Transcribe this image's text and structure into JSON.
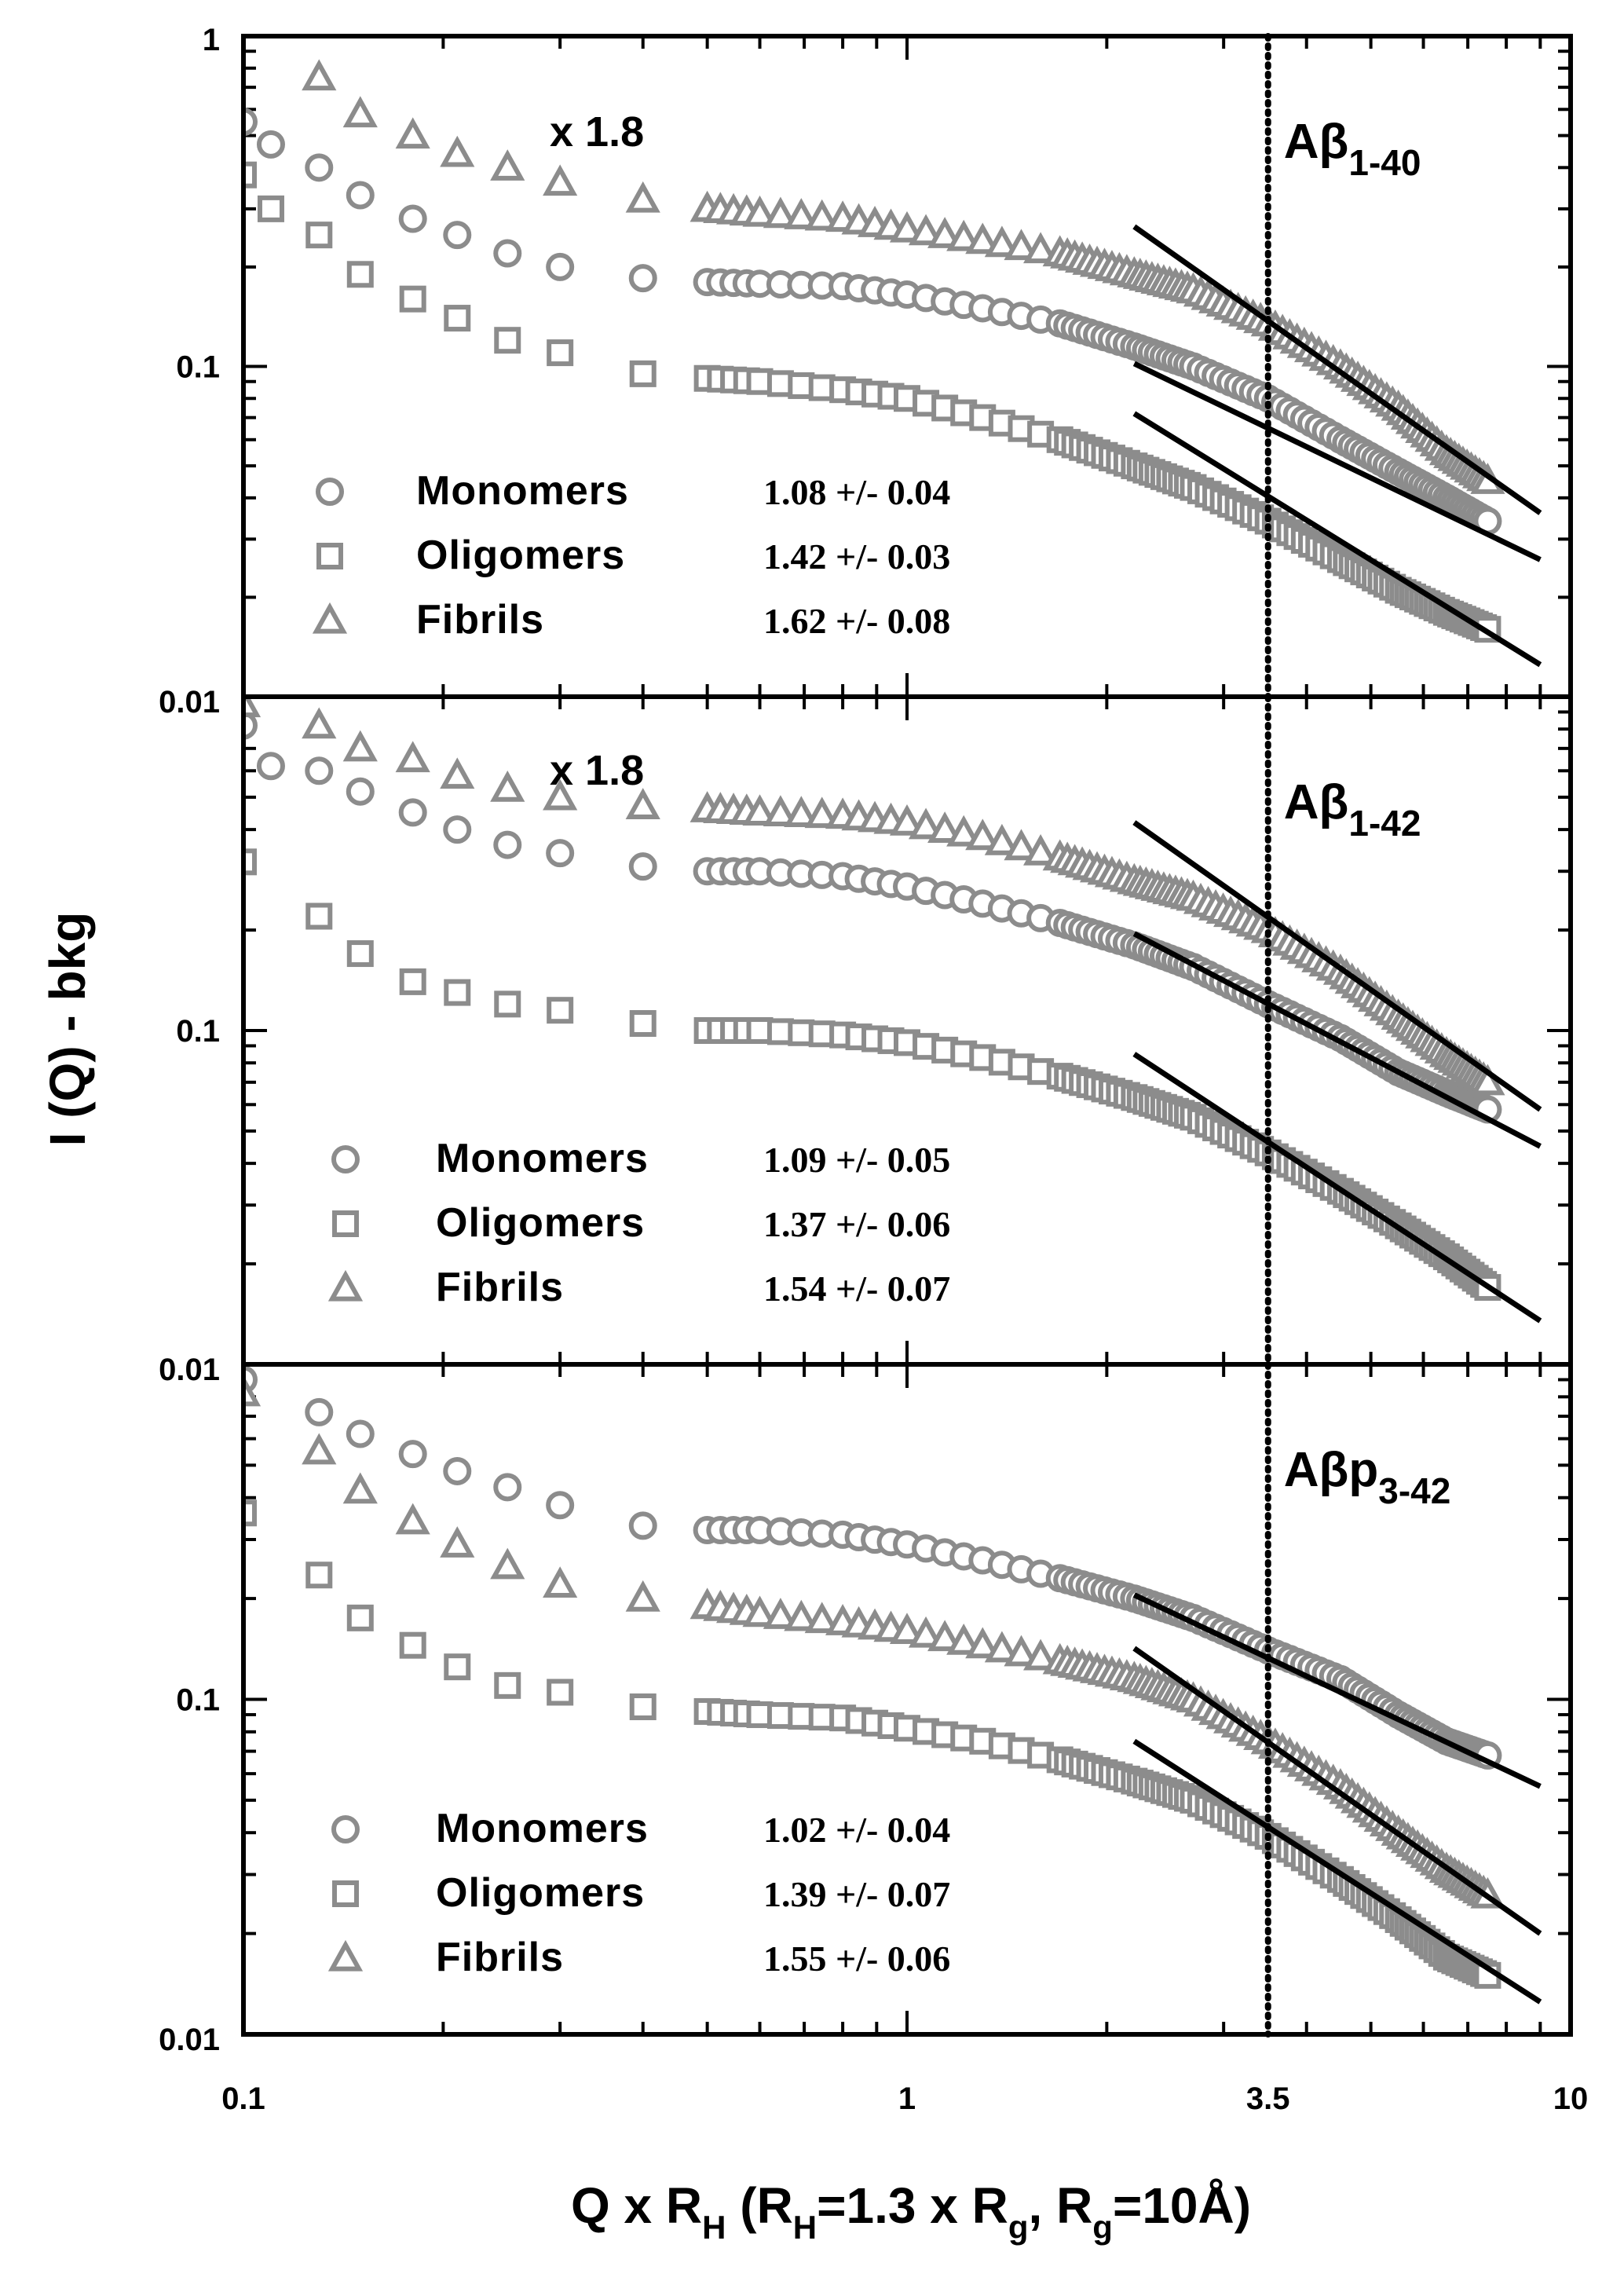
{
  "colors": {
    "marker": "#8c8c8c",
    "fit": "#000000",
    "axis": "#000000"
  },
  "chart_data": {
    "type": "scatter",
    "scale": "log-log",
    "xlabel": "Q x R_H (R_H=1.3 x R_g, R_g=10Å)",
    "xlabel_parts": [
      "Q x R",
      "H",
      " (R",
      "H",
      "=1.3 x R",
      "g",
      ", R",
      "g",
      "=10Å)"
    ],
    "ylabel": "I (Q) - bkg",
    "xlim": [
      0.1,
      10
    ],
    "x_ticks": [
      "0.1",
      "1",
      "3.5",
      "10"
    ],
    "vline": {
      "x": 3.5,
      "style": "dotted"
    },
    "panels": [
      {
        "label": "Aβ1-40",
        "label_main": "Aβ",
        "label_sub": "1-40",
        "scale_note": "x 1.8",
        "ylim": [
          0.01,
          1
        ],
        "y_ticks": [
          "1",
          "0.1",
          "0.01"
        ],
        "series": [
          {
            "name": "Monomers",
            "marker": "circle",
            "slope_text": "1.08 +/- 0.04",
            "points": [
              [
                0.1,
                0.55
              ],
              [
                0.11,
                0.47
              ],
              [
                0.13,
                0.4
              ],
              [
                0.15,
                0.33
              ],
              [
                0.18,
                0.28
              ],
              [
                0.21,
                0.25
              ],
              [
                0.25,
                0.22
              ],
              [
                0.3,
                0.2
              ],
              [
                0.4,
                0.185
              ],
              [
                0.5,
                0.18
              ],
              [
                0.6,
                0.178
              ],
              [
                0.8,
                0.175
              ],
              [
                1.0,
                0.165
              ],
              [
                1.3,
                0.15
              ],
              [
                1.7,
                0.135
              ],
              [
                2.2,
                0.115
              ],
              [
                2.7,
                0.1
              ],
              [
                3.5,
                0.08
              ],
              [
                4.5,
                0.06
              ],
              [
                5.5,
                0.048
              ],
              [
                6.5,
                0.04
              ],
              [
                7.5,
                0.034
              ]
            ],
            "fit": [
              [
                2.2,
                0.102
              ],
              [
                9,
                0.026
              ]
            ]
          },
          {
            "name": "Oligomers",
            "marker": "square",
            "slope_text": "1.42 +/- 0.03",
            "points": [
              [
                0.1,
                0.38
              ],
              [
                0.11,
                0.3
              ],
              [
                0.13,
                0.25
              ],
              [
                0.15,
                0.19
              ],
              [
                0.18,
                0.16
              ],
              [
                0.21,
                0.14
              ],
              [
                0.25,
                0.12
              ],
              [
                0.3,
                0.11
              ],
              [
                0.4,
                0.095
              ],
              [
                0.5,
                0.092
              ],
              [
                0.6,
                0.09
              ],
              [
                0.8,
                0.085
              ],
              [
                1.0,
                0.08
              ],
              [
                1.3,
                0.07
              ],
              [
                1.7,
                0.06
              ],
              [
                2.2,
                0.05
              ],
              [
                2.7,
                0.043
              ],
              [
                3.5,
                0.034
              ],
              [
                4.5,
                0.026
              ],
              [
                5.5,
                0.021
              ],
              [
                6.5,
                0.018
              ],
              [
                7.5,
                0.016
              ]
            ],
            "fit": [
              [
                2.2,
                0.072
              ],
              [
                9,
                0.0125
              ]
            ]
          },
          {
            "name": "Fibrils",
            "marker": "triangle",
            "slope_text": "1.62 +/- 0.08",
            "points": [
              [
                0.13,
                0.75
              ],
              [
                0.15,
                0.58
              ],
              [
                0.18,
                0.5
              ],
              [
                0.21,
                0.44
              ],
              [
                0.25,
                0.4
              ],
              [
                0.3,
                0.36
              ],
              [
                0.4,
                0.32
              ],
              [
                0.5,
                0.3
              ],
              [
                0.6,
                0.29
              ],
              [
                0.8,
                0.28
              ],
              [
                1.0,
                0.26
              ],
              [
                1.3,
                0.24
              ],
              [
                1.7,
                0.22
              ],
              [
                2.2,
                0.19
              ],
              [
                2.7,
                0.17
              ],
              [
                3.5,
                0.135
              ],
              [
                4.5,
                0.1
              ],
              [
                5.5,
                0.075
              ],
              [
                6.5,
                0.055
              ],
              [
                7.5,
                0.045
              ]
            ],
            "fit": [
              [
                2.2,
                0.265
              ],
              [
                9,
                0.036
              ]
            ]
          }
        ],
        "legend": [
          "Monomers",
          "Oligomers",
          "Fibrils"
        ]
      },
      {
        "label": "Aβ1-42",
        "label_main": "Aβ",
        "label_sub": "1-42",
        "scale_note": "x 1.8",
        "ylim": [
          0.01,
          1
        ],
        "y_ticks": [
          "0.1",
          "0.01"
        ],
        "series": [
          {
            "name": "Monomers",
            "marker": "circle",
            "slope_text": "1.09 +/- 0.05",
            "points": [
              [
                0.1,
                0.82
              ],
              [
                0.11,
                0.62
              ],
              [
                0.13,
                0.6
              ],
              [
                0.15,
                0.52
              ],
              [
                0.18,
                0.45
              ],
              [
                0.21,
                0.4
              ],
              [
                0.25,
                0.36
              ],
              [
                0.3,
                0.34
              ],
              [
                0.4,
                0.31
              ],
              [
                0.5,
                0.3
              ],
              [
                0.6,
                0.3
              ],
              [
                0.8,
                0.29
              ],
              [
                1.0,
                0.27
              ],
              [
                1.3,
                0.24
              ],
              [
                1.7,
                0.21
              ],
              [
                2.2,
                0.18
              ],
              [
                2.7,
                0.155
              ],
              [
                3.5,
                0.12
              ],
              [
                4.5,
                0.095
              ],
              [
                5.5,
                0.075
              ],
              [
                6.5,
                0.065
              ],
              [
                7.5,
                0.058
              ]
            ],
            "fit": [
              [
                2.2,
                0.195
              ],
              [
                9,
                0.045
              ]
            ]
          },
          {
            "name": "Oligomers",
            "marker": "square",
            "slope_text": "1.37 +/- 0.06",
            "points": [
              [
                0.1,
                0.32
              ],
              [
                0.13,
                0.22
              ],
              [
                0.15,
                0.17
              ],
              [
                0.18,
                0.14
              ],
              [
                0.21,
                0.13
              ],
              [
                0.25,
                0.12
              ],
              [
                0.3,
                0.115
              ],
              [
                0.4,
                0.105
              ],
              [
                0.5,
                0.1
              ],
              [
                0.6,
                0.1
              ],
              [
                0.8,
                0.097
              ],
              [
                1.0,
                0.092
              ],
              [
                1.3,
                0.083
              ],
              [
                1.7,
                0.073
              ],
              [
                2.2,
                0.063
              ],
              [
                2.7,
                0.055
              ],
              [
                3.5,
                0.043
              ],
              [
                4.5,
                0.033
              ],
              [
                5.5,
                0.026
              ],
              [
                6.5,
                0.021
              ],
              [
                7.5,
                0.017
              ]
            ],
            "fit": [
              [
                2.2,
                0.085
              ],
              [
                9,
                0.0135
              ]
            ]
          },
          {
            "name": "Fibrils",
            "marker": "triangle",
            "slope_text": "1.54 +/- 0.07",
            "points": [
              [
                0.1,
                0.95
              ],
              [
                0.13,
                0.82
              ],
              [
                0.15,
                0.7
              ],
              [
                0.18,
                0.65
              ],
              [
                0.21,
                0.58
              ],
              [
                0.25,
                0.53
              ],
              [
                0.3,
                0.5
              ],
              [
                0.4,
                0.47
              ],
              [
                0.5,
                0.46
              ],
              [
                0.6,
                0.45
              ],
              [
                0.8,
                0.44
              ],
              [
                1.0,
                0.42
              ],
              [
                1.3,
                0.38
              ],
              [
                1.7,
                0.33
              ],
              [
                2.2,
                0.28
              ],
              [
                2.7,
                0.25
              ],
              [
                3.5,
                0.2
              ],
              [
                4.5,
                0.15
              ],
              [
                5.5,
                0.11
              ],
              [
                6.5,
                0.085
              ],
              [
                7.5,
                0.07
              ]
            ],
            "fit": [
              [
                2.2,
                0.42
              ],
              [
                9,
                0.058
              ]
            ]
          }
        ],
        "legend": [
          "Monomers",
          "Oligomers",
          "Fibrils"
        ]
      },
      {
        "label": "Aβp3-42",
        "label_main": "Aβp",
        "label_sub": "3-42",
        "scale_note": "",
        "ylim": [
          0.01,
          1
        ],
        "y_ticks": [
          "0.1",
          "0.01"
        ],
        "series": [
          {
            "name": "Monomers",
            "marker": "circle",
            "slope_text": "1.02 +/- 0.04",
            "points": [
              [
                0.1,
                0.9
              ],
              [
                0.13,
                0.72
              ],
              [
                0.15,
                0.62
              ],
              [
                0.18,
                0.54
              ],
              [
                0.21,
                0.48
              ],
              [
                0.25,
                0.43
              ],
              [
                0.3,
                0.38
              ],
              [
                0.4,
                0.33
              ],
              [
                0.5,
                0.32
              ],
              [
                0.6,
                0.32
              ],
              [
                0.8,
                0.31
              ],
              [
                1.0,
                0.29
              ],
              [
                1.3,
                0.26
              ],
              [
                1.7,
                0.23
              ],
              [
                2.2,
                0.2
              ],
              [
                2.7,
                0.175
              ],
              [
                3.5,
                0.14
              ],
              [
                4.5,
                0.115
              ],
              [
                5.5,
                0.09
              ],
              [
                6.5,
                0.075
              ],
              [
                7.5,
                0.068
              ]
            ],
            "fit": [
              [
                2.2,
                0.205
              ],
              [
                9,
                0.055
              ]
            ]
          },
          {
            "name": "Oligomers",
            "marker": "square",
            "slope_text": "1.39 +/- 0.07",
            "points": [
              [
                0.1,
                0.36
              ],
              [
                0.13,
                0.235
              ],
              [
                0.15,
                0.175
              ],
              [
                0.18,
                0.145
              ],
              [
                0.21,
                0.125
              ],
              [
                0.25,
                0.11
              ],
              [
                0.3,
                0.105
              ],
              [
                0.4,
                0.095
              ],
              [
                0.5,
                0.092
              ],
              [
                0.6,
                0.09
              ],
              [
                0.8,
                0.088
              ],
              [
                1.0,
                0.082
              ],
              [
                1.3,
                0.075
              ],
              [
                1.7,
                0.066
              ],
              [
                2.2,
                0.057
              ],
              [
                2.7,
                0.05
              ],
              [
                3.5,
                0.039
              ],
              [
                4.5,
                0.029
              ],
              [
                5.5,
                0.022
              ],
              [
                6.5,
                0.017
              ],
              [
                7.5,
                0.015
              ]
            ],
            "fit": [
              [
                2.2,
                0.075
              ],
              [
                9,
                0.0125
              ]
            ]
          },
          {
            "name": "Fibrils",
            "marker": "triangle",
            "slope_text": "1.55 +/- 0.06",
            "points": [
              [
                0.1,
                0.82
              ],
              [
                0.13,
                0.55
              ],
              [
                0.15,
                0.42
              ],
              [
                0.18,
                0.34
              ],
              [
                0.21,
                0.29
              ],
              [
                0.25,
                0.25
              ],
              [
                0.3,
                0.22
              ],
              [
                0.4,
                0.2
              ],
              [
                0.5,
                0.19
              ],
              [
                0.6,
                0.18
              ],
              [
                0.8,
                0.17
              ],
              [
                1.0,
                0.16
              ],
              [
                1.3,
                0.145
              ],
              [
                1.7,
                0.13
              ],
              [
                2.2,
                0.115
              ],
              [
                2.7,
                0.1
              ],
              [
                3.5,
                0.075
              ],
              [
                4.5,
                0.055
              ],
              [
                5.5,
                0.04
              ],
              [
                6.5,
                0.031
              ],
              [
                7.5,
                0.026
              ]
            ],
            "fit": [
              [
                2.2,
                0.142
              ],
              [
                9,
                0.02
              ]
            ]
          }
        ],
        "legend": [
          "Monomers",
          "Oligomers",
          "Fibrils"
        ]
      }
    ]
  }
}
